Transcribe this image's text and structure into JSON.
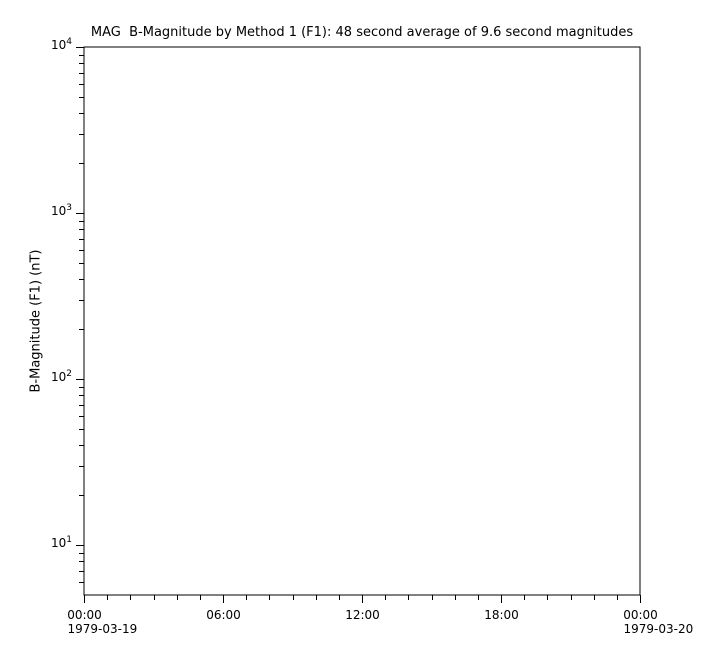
{
  "chart_data": {
    "type": "line",
    "title": "MAG  B-Magnitude by Method 1 (F1): 48 second average of 9.6 second magnitudes",
    "xlabel": "",
    "ylabel": "B-Magnitude (F1) (nT)",
    "grid": false,
    "background_color": "#ffffff",
    "axis_color": "#000000",
    "text_color": "#000000",
    "y_axis": {
      "scale": "log",
      "ylim": [
        5,
        10000
      ],
      "major_ticks": [
        {
          "value": 10000,
          "mantissa": "10",
          "exponent": "4"
        },
        {
          "value": 1000,
          "mantissa": "10",
          "exponent": "3"
        },
        {
          "value": 100,
          "mantissa": "10",
          "exponent": "2"
        },
        {
          "value": 10,
          "mantissa": "10",
          "exponent": "1"
        }
      ],
      "minor_tick_mantissas": [
        2,
        3,
        4,
        5,
        6,
        7,
        8,
        9
      ]
    },
    "x_axis": {
      "unit": "hours",
      "xlim": [
        0,
        24
      ],
      "major_ticks": [
        {
          "hour": 0,
          "label": "00:00",
          "date": "1979-03-19"
        },
        {
          "hour": 6,
          "label": "06:00"
        },
        {
          "hour": 12,
          "label": "12:00"
        },
        {
          "hour": 18,
          "label": "18:00"
        },
        {
          "hour": 24,
          "label": "00:00",
          "date": "1979-03-20"
        }
      ],
      "minor_tick_interval_hours": 1
    },
    "series": []
  }
}
